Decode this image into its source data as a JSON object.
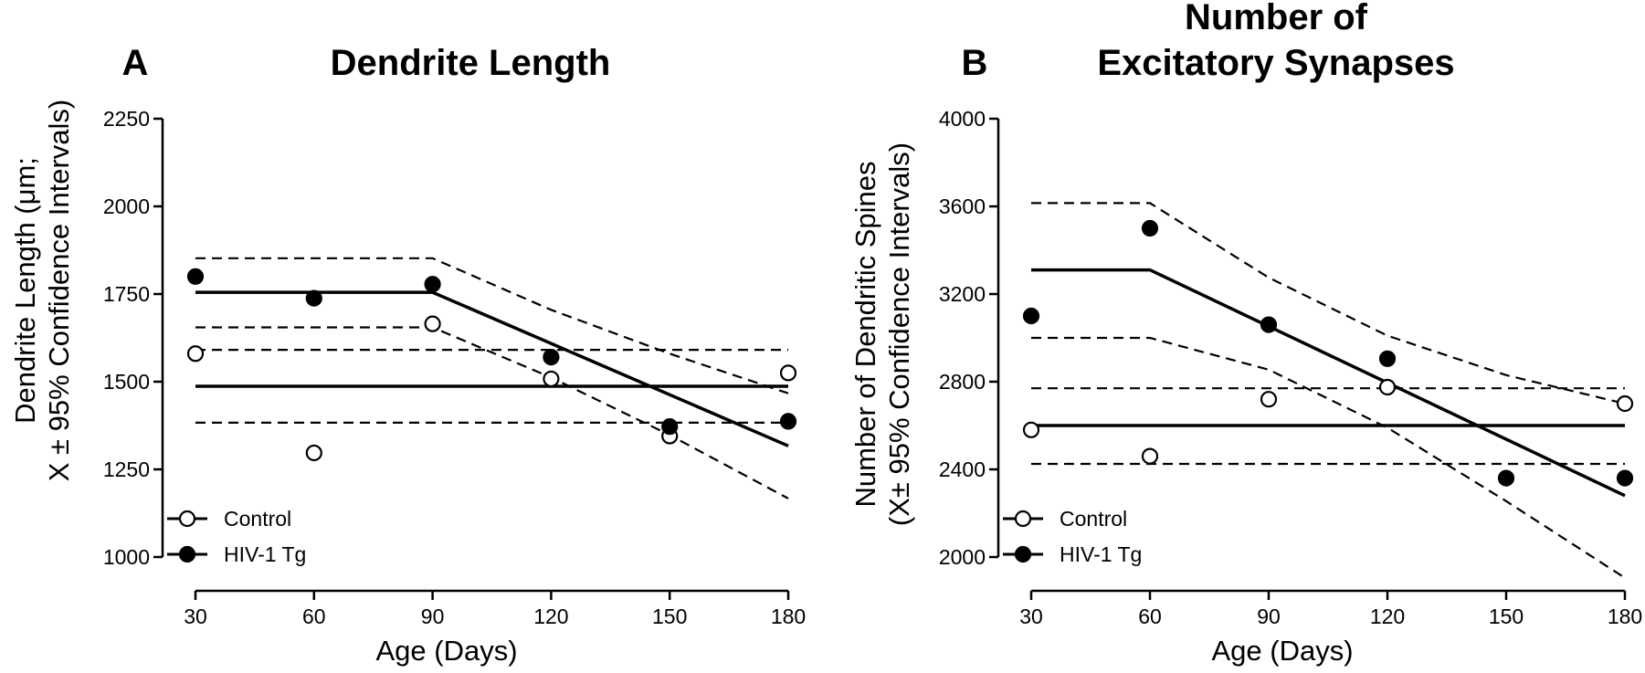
{
  "chart_data": [
    {
      "panel": "A",
      "type": "scatter",
      "title": "Dendrite Length",
      "ylabel_line1": "Dendrite Length  (μm;",
      "ylabel_line2": "X ± 95% Confidence  Intervals)",
      "xlabel": "Age (Days)",
      "xticks": [
        30,
        60,
        90,
        120,
        150,
        180
      ],
      "yticks": [
        1000,
        1250,
        1500,
        1750,
        2000,
        2250
      ],
      "xlim": [
        30,
        180
      ],
      "ylim": [
        1000,
        2250
      ],
      "grid": false,
      "legend_position": "bottom-left",
      "series": [
        {
          "name": "Control",
          "marker": "open-circle",
          "x": [
            30,
            60,
            90,
            120,
            150,
            180
          ],
          "y": [
            1580,
            1297,
            1665,
            1508,
            1345,
            1525
          ],
          "fit": {
            "x": [
              30,
              180
            ],
            "y": [
              1487,
              1487
            ]
          },
          "ci_upper": {
            "x": [
              30,
              180
            ],
            "y": [
              1591,
              1591
            ]
          },
          "ci_lower": {
            "x": [
              30,
              180
            ],
            "y": [
              1383,
              1383
            ]
          }
        },
        {
          "name": "HIV-1 Tg",
          "marker": "filled-circle",
          "x": [
            30,
            60,
            90,
            120,
            150,
            180
          ],
          "y": [
            1800,
            1738,
            1778,
            1570,
            1372,
            1387
          ],
          "fit": {
            "x": [
              30,
              90,
              180
            ],
            "y": [
              1755,
              1755,
              1317
            ]
          },
          "ci_upper": {
            "x": [
              30,
              90,
              120,
              150,
              180
            ],
            "y": [
              1852,
              1852,
              1705,
              1580,
              1467
            ]
          },
          "ci_lower": {
            "x": [
              30,
              90,
              120,
              150,
              180
            ],
            "y": [
              1655,
              1655,
              1512,
              1348,
              1167
            ]
          }
        }
      ]
    },
    {
      "panel": "B",
      "type": "scatter",
      "title_line1": "Number of",
      "title_line2": "Excitatory  Synapses",
      "ylabel_line1": "Number of  Dendritic Spines",
      "ylabel_line2": "(X± 95% Confidence Intervals)",
      "xlabel": "Age (Days)",
      "xticks": [
        30,
        60,
        90,
        120,
        150,
        180
      ],
      "yticks": [
        2000,
        2400,
        2800,
        3200,
        3600,
        4000
      ],
      "xlim": [
        30,
        180
      ],
      "ylim": [
        2000,
        4000
      ],
      "grid": false,
      "legend_position": "bottom-left",
      "series": [
        {
          "name": "Control",
          "marker": "open-circle",
          "x": [
            30,
            60,
            90,
            120,
            180
          ],
          "y": [
            2580,
            2460,
            2720,
            2775,
            2700
          ],
          "fit": {
            "x": [
              30,
              180
            ],
            "y": [
              2600,
              2600
            ]
          },
          "ci_upper": {
            "x": [
              30,
              180
            ],
            "y": [
              2770,
              2770
            ]
          },
          "ci_lower": {
            "x": [
              30,
              180
            ],
            "y": [
              2425,
              2425
            ]
          }
        },
        {
          "name": "HIV-1 Tg",
          "marker": "filled-circle",
          "x": [
            30,
            60,
            90,
            120,
            150,
            180
          ],
          "y": [
            3100,
            3500,
            3060,
            2905,
            2360,
            2360
          ],
          "fit": {
            "x": [
              30,
              60,
              180
            ],
            "y": [
              3310,
              3310,
              2280
            ]
          },
          "ci_upper": {
            "x": [
              30,
              60,
              90,
              120,
              150,
              180
            ],
            "y": [
              3615,
              3615,
              3275,
              3010,
              2830,
              2700
            ]
          },
          "ci_lower": {
            "x": [
              30,
              60,
              90,
              120,
              150,
              180
            ],
            "y": [
              3000,
              3000,
              2855,
              2590,
              2255,
              1905
            ]
          }
        }
      ]
    }
  ]
}
